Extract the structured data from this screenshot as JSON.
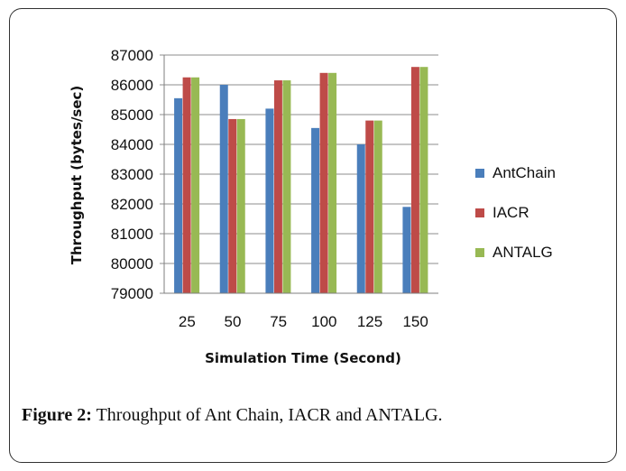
{
  "caption": {
    "label": "Figure 2:",
    "text": " Throughput of Ant Chain, IACR and ANTALG."
  },
  "chart_data": {
    "type": "bar",
    "categories": [
      "25",
      "50",
      "75",
      "100",
      "125",
      "150"
    ],
    "series": [
      {
        "name": "AntChain",
        "color": "#4a7ebb",
        "values": [
          85550,
          86000,
          85200,
          84550,
          84000,
          81900
        ]
      },
      {
        "name": "IACR",
        "color": "#be4b48",
        "values": [
          86250,
          84850,
          86150,
          86400,
          84800,
          86600
        ]
      },
      {
        "name": "ANTALG",
        "color": "#98b954",
        "values": [
          86250,
          84850,
          86150,
          86400,
          84800,
          86600
        ]
      }
    ],
    "xlabel": "Simulation Time (Second)",
    "ylabel": "Throughput (bytes/sec)",
    "ylim": [
      79000,
      87000
    ],
    "yticks": [
      "79000",
      "80000",
      "81000",
      "82000",
      "83000",
      "84000",
      "85000",
      "86000",
      "87000"
    ],
    "grid": true,
    "legend": "right"
  }
}
